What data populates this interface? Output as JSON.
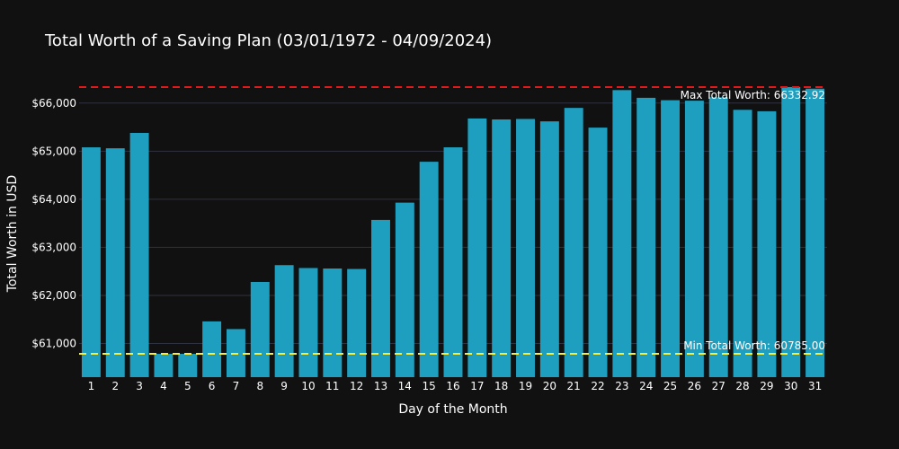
{
  "chart_data": {
    "type": "bar",
    "title": "Total Worth of a Saving Plan (03/01/1972 - 04/09/2024)",
    "xlabel": "Day of the Month",
    "ylabel": "Total Worth in USD",
    "categories": [
      "1",
      "2",
      "3",
      "4",
      "5",
      "6",
      "7",
      "8",
      "9",
      "10",
      "11",
      "12",
      "13",
      "14",
      "15",
      "16",
      "17",
      "18",
      "19",
      "20",
      "21",
      "22",
      "23",
      "24",
      "25",
      "26",
      "27",
      "28",
      "29",
      "30",
      "31"
    ],
    "values": [
      65080,
      65060,
      65380,
      60785,
      60785,
      61460,
      61300,
      62280,
      62630,
      62570,
      62560,
      62550,
      63570,
      63930,
      64780,
      65080,
      65680,
      65660,
      65670,
      65620,
      65900,
      65490,
      66270,
      66110,
      66060,
      66050,
      66120,
      65860,
      65830,
      66332.92,
      66300
    ],
    "ylim": [
      60300,
      66650
    ],
    "yticks": [
      61000,
      62000,
      63000,
      64000,
      65000,
      66000
    ],
    "ytick_labels": [
      "$61,000",
      "$62,000",
      "$63,000",
      "$64,000",
      "$65,000",
      "$66,000"
    ],
    "grid": true,
    "bar_color": "#1f9fbf",
    "background_color": "#111111",
    "grid_color": "#2f3240",
    "reference_lines": [
      {
        "value": 66332.92,
        "color": "#e31a1c",
        "label": "Max Total Worth: 66332.92"
      },
      {
        "value": 60785.0,
        "color": "#f5ee3a",
        "label": "Min Total Worth: 60785.00"
      }
    ]
  }
}
